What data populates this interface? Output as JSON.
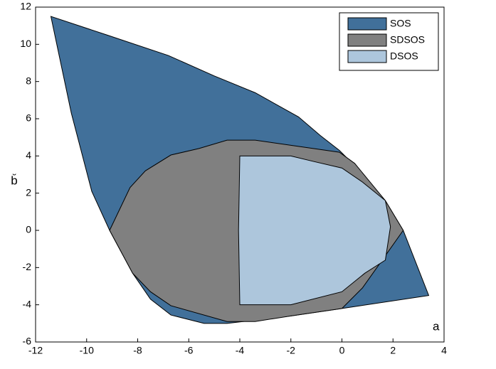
{
  "chart_data": {
    "type": "fill",
    "xlabel": "a",
    "ylabel": "b̆",
    "xlim": [
      -12,
      4
    ],
    "xticks": [
      -12,
      -10,
      -8,
      -6,
      -4,
      -2,
      0,
      2,
      4
    ],
    "ylim": [
      -6,
      12
    ],
    "yticks": [
      -6,
      -4,
      -2,
      0,
      2,
      4,
      6,
      8,
      10,
      12
    ],
    "legend": "upper right",
    "series": [
      {
        "name": "SOS",
        "color": "#41709a",
        "x": [
          -11.4,
          -9.2,
          -6.8,
          -5,
          -3.4,
          -1.7,
          -0.85,
          -0.1,
          0.7,
          1.7,
          2.4,
          3.4,
          0,
          -2,
          -4.5,
          -5.4,
          -6.7,
          -7.5,
          -8.2,
          -9.1,
          -9.8,
          -10.6
        ],
        "values": [
          11.5,
          10.5,
          9.4,
          8.3,
          7.4,
          6.1,
          5.1,
          4.3,
          3.2,
          1.6,
          0,
          -3.5,
          -4.2,
          -4.6,
          -5,
          -5,
          -4.55,
          -3.7,
          -2.3,
          0,
          2.1,
          6.3
        ]
      },
      {
        "name": "SDSOS",
        "color": "#808080",
        "x": [
          -9.1,
          -8.3,
          -7.7,
          -6.7,
          -5.6,
          -4.5,
          -3.4,
          -0.1,
          0.5,
          1.1,
          1.7,
          2.4,
          1.5,
          0.8,
          0,
          -2,
          -3.4,
          -4.5,
          -6.7,
          -7.5,
          -8.2
        ],
        "values": [
          0,
          2.3,
          3.2,
          4.05,
          4.4,
          4.85,
          4.85,
          4.2,
          3.6,
          2.6,
          1.6,
          0,
          -1.75,
          -3.1,
          -4.2,
          -4.6,
          -4.9,
          -4.9,
          -4.05,
          -3.3,
          -2.3
        ]
      },
      {
        "name": "DSOS",
        "color": "#adc6dc",
        "x": [
          -4,
          -2,
          -1.1,
          0,
          0.8,
          1.7,
          1.9,
          1.7,
          0.9,
          0,
          -2,
          -4,
          -4.05
        ],
        "values": [
          4,
          4,
          3.7,
          3.35,
          2.6,
          1.6,
          0.2,
          -1.6,
          -2.3,
          -3.3,
          -4,
          -4,
          0
        ]
      }
    ]
  }
}
